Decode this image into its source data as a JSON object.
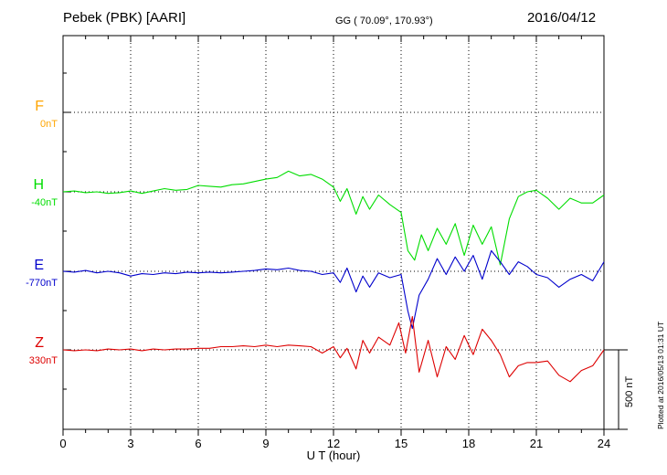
{
  "header": {
    "station": "Pebek (PBK)  [AARI]",
    "coords": "GG ( 70.09°, 170.93°)",
    "date": "2016/04/12"
  },
  "plotted_note": "Plotted at 2016/05/13 01:31 UT",
  "scale_bar": {
    "label": "500 nT",
    "value_nT": 500
  },
  "colors": {
    "F": "#ffa500",
    "H": "#00dd00",
    "E": "#0000cc",
    "Z": "#dd0000",
    "grid": "#000000"
  },
  "chart_data": {
    "type": "line",
    "xlabel": "U T (hour)",
    "xlim": [
      0,
      24
    ],
    "x_ticks": [
      "0",
      "3",
      "6",
      "9",
      "12",
      "15",
      "18",
      "21",
      "24"
    ],
    "nT_per_division": 500,
    "series": [
      {
        "name": "F",
        "baseline_label": "0nT",
        "values": []
      },
      {
        "name": "H",
        "baseline_label": "-40nT",
        "values": [
          [
            0,
            0
          ],
          [
            0.5,
            5
          ],
          [
            1,
            -5
          ],
          [
            1.5,
            0
          ],
          [
            2,
            -10
          ],
          [
            2.5,
            -5
          ],
          [
            3,
            5
          ],
          [
            3.5,
            -10
          ],
          [
            4,
            5
          ],
          [
            4.5,
            20
          ],
          [
            5,
            10
          ],
          [
            5.5,
            15
          ],
          [
            6,
            40
          ],
          [
            6.5,
            35
          ],
          [
            7,
            30
          ],
          [
            7.5,
            45
          ],
          [
            8,
            50
          ],
          [
            8.5,
            65
          ],
          [
            9,
            80
          ],
          [
            9.5,
            90
          ],
          [
            10,
            130
          ],
          [
            10.5,
            100
          ],
          [
            11,
            110
          ],
          [
            11.5,
            80
          ],
          [
            12,
            30
          ],
          [
            12.3,
            -60
          ],
          [
            12.6,
            20
          ],
          [
            13,
            -140
          ],
          [
            13.3,
            -30
          ],
          [
            13.6,
            -110
          ],
          [
            14,
            -20
          ],
          [
            14.5,
            -80
          ],
          [
            15,
            -130
          ],
          [
            15.3,
            -370
          ],
          [
            15.6,
            -430
          ],
          [
            15.9,
            -270
          ],
          [
            16.2,
            -370
          ],
          [
            16.6,
            -230
          ],
          [
            17,
            -330
          ],
          [
            17.4,
            -200
          ],
          [
            17.8,
            -400
          ],
          [
            18.2,
            -210
          ],
          [
            18.6,
            -330
          ],
          [
            19,
            -220
          ],
          [
            19.4,
            -460
          ],
          [
            19.8,
            -170
          ],
          [
            20.2,
            -30
          ],
          [
            20.6,
            0
          ],
          [
            21,
            10
          ],
          [
            21.5,
            -40
          ],
          [
            22,
            -110
          ],
          [
            22.5,
            -40
          ],
          [
            23,
            -70
          ],
          [
            23.5,
            -70
          ],
          [
            24,
            -20
          ]
        ]
      },
      {
        "name": "E",
        "baseline_label": "-770nT",
        "values": [
          [
            0,
            0
          ],
          [
            0.5,
            -5
          ],
          [
            1,
            5
          ],
          [
            1.5,
            -10
          ],
          [
            2,
            0
          ],
          [
            2.5,
            -10
          ],
          [
            3,
            -30
          ],
          [
            3.5,
            -15
          ],
          [
            4,
            -20
          ],
          [
            4.5,
            -10
          ],
          [
            5,
            -15
          ],
          [
            5.5,
            -5
          ],
          [
            6,
            -10
          ],
          [
            6.5,
            -5
          ],
          [
            7,
            -10
          ],
          [
            7.5,
            -5
          ],
          [
            8,
            0
          ],
          [
            8.5,
            5
          ],
          [
            9,
            15
          ],
          [
            9.5,
            10
          ],
          [
            10,
            20
          ],
          [
            10.5,
            5
          ],
          [
            11,
            0
          ],
          [
            11.5,
            -20
          ],
          [
            12,
            -10
          ],
          [
            12.3,
            -70
          ],
          [
            12.6,
            20
          ],
          [
            13,
            -130
          ],
          [
            13.3,
            -30
          ],
          [
            13.6,
            -100
          ],
          [
            14,
            -10
          ],
          [
            14.5,
            -40
          ],
          [
            15,
            -20
          ],
          [
            15.3,
            -250
          ],
          [
            15.5,
            -360
          ],
          [
            15.8,
            -150
          ],
          [
            16.2,
            -50
          ],
          [
            16.6,
            80
          ],
          [
            17,
            -20
          ],
          [
            17.4,
            90
          ],
          [
            17.8,
            0
          ],
          [
            18.2,
            100
          ],
          [
            18.6,
            -50
          ],
          [
            19,
            130
          ],
          [
            19.4,
            60
          ],
          [
            19.8,
            -20
          ],
          [
            20.2,
            60
          ],
          [
            20.6,
            30
          ],
          [
            21,
            -20
          ],
          [
            21.5,
            -40
          ],
          [
            22,
            -100
          ],
          [
            22.5,
            -50
          ],
          [
            23,
            -20
          ],
          [
            23.5,
            -60
          ],
          [
            24,
            60
          ]
        ]
      },
      {
        "name": "Z",
        "baseline_label": "330nT",
        "values": [
          [
            0,
            0
          ],
          [
            0.5,
            -5
          ],
          [
            1,
            0
          ],
          [
            1.5,
            -5
          ],
          [
            2,
            5
          ],
          [
            2.5,
            0
          ],
          [
            3,
            5
          ],
          [
            3.5,
            -5
          ],
          [
            4,
            5
          ],
          [
            4.5,
            0
          ],
          [
            5,
            5
          ],
          [
            5.5,
            5
          ],
          [
            6,
            10
          ],
          [
            6.5,
            10
          ],
          [
            7,
            20
          ],
          [
            7.5,
            20
          ],
          [
            8,
            25
          ],
          [
            8.5,
            20
          ],
          [
            9,
            30
          ],
          [
            9.5,
            20
          ],
          [
            10,
            30
          ],
          [
            10.5,
            25
          ],
          [
            11,
            20
          ],
          [
            11.5,
            -20
          ],
          [
            12,
            20
          ],
          [
            12.3,
            -50
          ],
          [
            12.6,
            10
          ],
          [
            13,
            -120
          ],
          [
            13.3,
            60
          ],
          [
            13.6,
            -20
          ],
          [
            14,
            80
          ],
          [
            14.5,
            30
          ],
          [
            14.9,
            170
          ],
          [
            15.2,
            -20
          ],
          [
            15.5,
            210
          ],
          [
            15.8,
            -140
          ],
          [
            16.2,
            60
          ],
          [
            16.6,
            -170
          ],
          [
            17,
            20
          ],
          [
            17.4,
            -60
          ],
          [
            17.8,
            90
          ],
          [
            18.2,
            -30
          ],
          [
            18.6,
            130
          ],
          [
            19,
            60
          ],
          [
            19.4,
            -30
          ],
          [
            19.8,
            -170
          ],
          [
            20.2,
            -100
          ],
          [
            20.6,
            -80
          ],
          [
            21,
            -80
          ],
          [
            21.5,
            -70
          ],
          [
            22,
            -160
          ],
          [
            22.5,
            -200
          ],
          [
            23,
            -130
          ],
          [
            23.5,
            -100
          ],
          [
            24,
            0
          ]
        ]
      }
    ]
  }
}
